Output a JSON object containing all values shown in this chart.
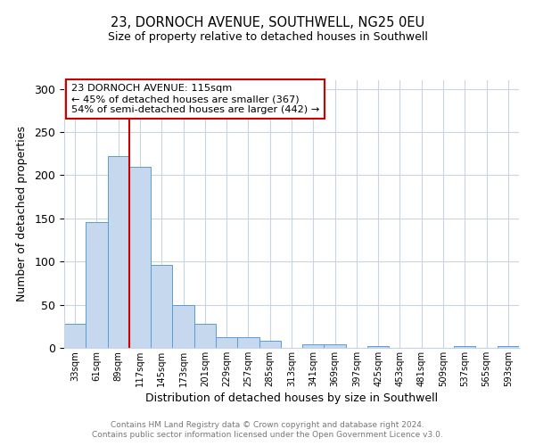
{
  "title": "23, DORNOCH AVENUE, SOUTHWELL, NG25 0EU",
  "subtitle": "Size of property relative to detached houses in Southwell",
  "xlabel": "Distribution of detached houses by size in Southwell",
  "ylabel": "Number of detached properties",
  "bin_labels": [
    "33sqm",
    "61sqm",
    "89sqm",
    "117sqm",
    "145sqm",
    "173sqm",
    "201sqm",
    "229sqm",
    "257sqm",
    "285sqm",
    "313sqm",
    "341sqm",
    "369sqm",
    "397sqm",
    "425sqm",
    "453sqm",
    "481sqm",
    "509sqm",
    "537sqm",
    "565sqm",
    "593sqm"
  ],
  "bin_values": [
    28,
    146,
    222,
    210,
    96,
    50,
    28,
    12,
    12,
    8,
    0,
    4,
    4,
    0,
    2,
    0,
    0,
    0,
    2,
    0,
    2
  ],
  "bar_color": "#c5d8ed",
  "bar_edge_color": "#5b9bd5",
  "bar_width": 1.0,
  "vline_x": 2.5,
  "vline_color": "#cc0000",
  "ylim": [
    0,
    310
  ],
  "yticks": [
    0,
    50,
    100,
    150,
    200,
    250,
    300
  ],
  "annotation_title": "23 DORNOCH AVENUE: 115sqm",
  "annotation_line1": "← 45% of detached houses are smaller (367)",
  "annotation_line2": "54% of semi-detached houses are larger (442) →",
  "annotation_box_color": "#cc0000",
  "footer_line1": "Contains HM Land Registry data © Crown copyright and database right 2024.",
  "footer_line2": "Contains public sector information licensed under the Open Government Licence v3.0.",
  "background_color": "#ffffff",
  "grid_color": "#c8d4e0"
}
